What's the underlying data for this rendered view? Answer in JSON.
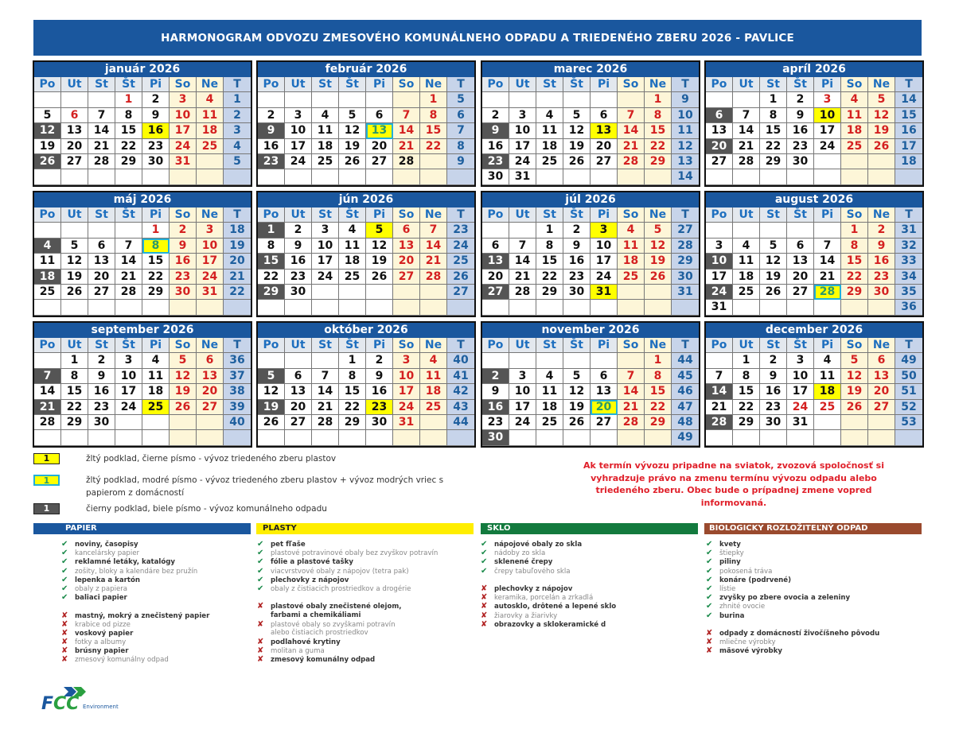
{
  "title": "HARMONOGRAM ODVOZU ZMESOVÉHO KOMUNÁLNEHO ODPADU A TRIEDENÉHO ZBERU  2026 - PAVLICE",
  "weekday_headers": [
    "Po",
    "Ut",
    "St",
    "Št",
    "Pi",
    "So",
    "Ne",
    "T"
  ],
  "colors": {
    "header_blue": "#1a579e",
    "holiday_red": "#d42020",
    "komunal_dark": "#555555",
    "plastic_yellow": "#ffff00",
    "paper_cyan": "#22b0d8",
    "weekend_cream": "#fdf6d8",
    "week_col": "#c7d4ea"
  },
  "months": [
    {
      "name": "január 2026",
      "starts_on": "Št",
      "days": 31,
      "weeks": [
        "1",
        "2",
        "3",
        "4",
        "5",
        ""
      ],
      "red": [
        1,
        3,
        4,
        6,
        10,
        11,
        17,
        18,
        24,
        25,
        31
      ],
      "komunal": [
        12,
        26
      ],
      "plasty": [
        16
      ],
      "plasty_papier": []
    },
    {
      "name": "február 2026",
      "starts_on": "Ne",
      "days": 28,
      "weeks": [
        "5",
        "6",
        "7",
        "8",
        "9",
        ""
      ],
      "red": [
        1,
        7,
        8,
        14,
        15,
        21,
        22
      ],
      "komunal": [
        9,
        23
      ],
      "plasty": [],
      "plasty_papier": [
        13
      ]
    },
    {
      "name": "marec 2026",
      "starts_on": "Ne",
      "days": 31,
      "weeks": [
        "9",
        "10",
        "11",
        "12",
        "13",
        "14"
      ],
      "red": [
        1,
        7,
        8,
        14,
        15,
        21,
        22,
        28,
        29
      ],
      "komunal": [
        9,
        23
      ],
      "plasty": [
        13
      ],
      "plasty_papier": []
    },
    {
      "name": "apríl 2026",
      "starts_on": "St",
      "days": 30,
      "weeks": [
        "14",
        "15",
        "16",
        "17",
        "18",
        ""
      ],
      "red": [
        3,
        4,
        5,
        11,
        12,
        18,
        19,
        25,
        26
      ],
      "komunal": [
        6,
        20
      ],
      "plasty": [
        10
      ],
      "plasty_papier": []
    },
    {
      "name": "máj 2026",
      "starts_on": "Pi",
      "days": 31,
      "weeks": [
        "18",
        "19",
        "20",
        "21",
        "22",
        ""
      ],
      "red": [
        1,
        2,
        3,
        9,
        10,
        16,
        17,
        23,
        24,
        30,
        31
      ],
      "komunal": [
        4,
        18
      ],
      "plasty": [],
      "plasty_papier": [
        8
      ]
    },
    {
      "name": "jún 2026",
      "starts_on": "Po",
      "days": 30,
      "weeks": [
        "23",
        "24",
        "25",
        "26",
        "27",
        ""
      ],
      "red": [
        6,
        7,
        13,
        14,
        20,
        21,
        27,
        28
      ],
      "komunal": [
        1,
        15,
        29
      ],
      "plasty": [
        5
      ],
      "plasty_papier": []
    },
    {
      "name": "júl 2026",
      "starts_on": "St",
      "days": 31,
      "weeks": [
        "27",
        "28",
        "29",
        "30",
        "31",
        ""
      ],
      "red": [
        4,
        5,
        11,
        12,
        18,
        19,
        25,
        26
      ],
      "komunal": [
        13,
        27
      ],
      "plasty": [
        3,
        31
      ],
      "plasty_papier": []
    },
    {
      "name": "august 2026",
      "starts_on": "So",
      "days": 31,
      "weeks": [
        "31",
        "32",
        "33",
        "34",
        "35",
        "36"
      ],
      "red": [
        1,
        2,
        8,
        9,
        15,
        16,
        22,
        23,
        29,
        30
      ],
      "komunal": [
        10,
        24
      ],
      "plasty": [],
      "plasty_papier": [
        28
      ]
    },
    {
      "name": "september 2026",
      "starts_on": "Ut",
      "days": 30,
      "weeks": [
        "36",
        "37",
        "38",
        "39",
        "40",
        ""
      ],
      "red": [
        5,
        6,
        12,
        13,
        19,
        20,
        26,
        27
      ],
      "komunal": [
        7,
        21
      ],
      "plasty": [
        25
      ],
      "plasty_papier": []
    },
    {
      "name": "október 2026",
      "starts_on": "Št",
      "days": 31,
      "weeks": [
        "40",
        "41",
        "42",
        "43",
        "44",
        ""
      ],
      "red": [
        3,
        4,
        10,
        11,
        17,
        18,
        24,
        25,
        31
      ],
      "komunal": [
        5,
        19
      ],
      "plasty": [
        23
      ],
      "plasty_papier": []
    },
    {
      "name": "november 2026",
      "starts_on": "Ne",
      "days": 30,
      "weeks": [
        "44",
        "45",
        "46",
        "47",
        "48",
        "49"
      ],
      "red": [
        1,
        7,
        8,
        14,
        15,
        21,
        22,
        28,
        29
      ],
      "komunal": [
        2,
        16,
        30
      ],
      "plasty": [],
      "plasty_papier": [
        20
      ]
    },
    {
      "name": "december 2026",
      "starts_on": "Ut",
      "days": 31,
      "weeks": [
        "49",
        "50",
        "51",
        "52",
        "53",
        ""
      ],
      "red": [
        5,
        6,
        12,
        13,
        19,
        20,
        24,
        25,
        26,
        27
      ],
      "komunal": [
        14,
        28
      ],
      "plasty": [
        18
      ],
      "plasty_papier": []
    }
  ],
  "legend": [
    {
      "sample": "1",
      "style": "plasty",
      "text": "žltý podklad, čierne písmo - vývoz triedeného zberu plastov"
    },
    {
      "sample": "1",
      "style": "plasty_papier",
      "text": "žltý podklad, modré písmo - vývoz triedeného zberu plastov + vývoz modrých vriec s papierom z domácností"
    },
    {
      "sample": "1",
      "style": "komunal",
      "text": "čierny podklad, biele písmo - vývoz komunálneho odpadu"
    }
  ],
  "note": "Ak termín vývozu pripadne na sviatok, zvozová spoločnosť si vyhradzuje právo na zmenu termínu vývozu odpadu alebo triedeného zberu.  Obec bude o prípadnej zmene vopred informovaná.",
  "categories": [
    {
      "title": "PAPIER",
      "color": "#1a579e",
      "text_color": "#ffffff",
      "ok": [
        {
          "t": "noviny, časopisy",
          "b": true
        },
        {
          "t": "kancelársky papier",
          "b": false
        },
        {
          "t": "reklamné letáky, katalógy",
          "b": true
        },
        {
          "t": "zošity, bloky a kalendáre bez pružín",
          "b": false
        },
        {
          "t": "lepenka a kartón",
          "b": true
        },
        {
          "t": "obaly z papiera",
          "b": false
        },
        {
          "t": "baliaci papier",
          "b": true
        }
      ],
      "no": [
        {
          "t": "mastný, mokrý  a znečistený papier",
          "b": true
        },
        {
          "t": "krabice od pizze",
          "b": false
        },
        {
          "t": "voskový papier",
          "b": true
        },
        {
          "t": "fotky a albumy",
          "b": false
        },
        {
          "t": "brúsny papier",
          "b": true
        },
        {
          "t": "zmesový komunálny odpad",
          "b": false
        }
      ]
    },
    {
      "title": "PLASTY",
      "color": "#ffee00",
      "text_color": "#222222",
      "ok": [
        {
          "t": "pet fľaše",
          "b": true
        },
        {
          "t": "plastové potravinové obaly bez zvyškov potravín",
          "b": false
        },
        {
          "t": "fólie a plastové tašky",
          "b": true
        },
        {
          "t": "viacvrstvové obaly z nápojov (tetra pak)",
          "b": false
        },
        {
          "t": "plechovky z nápojov",
          "b": true
        },
        {
          "t": "obaly z čistiacich prostriedkov a drogérie",
          "b": false
        }
      ],
      "no": [
        {
          "t": "plastové obaly znečistené olejom,",
          "b": true
        },
        {
          "t": "farbami a chemikáliami",
          "b": true,
          "cont": true
        },
        {
          "t": "plastové obaly so zvyškami potravín",
          "b": false
        },
        {
          "t": "alebo čistiacich prostriedkov",
          "b": false,
          "cont": true
        },
        {
          "t": "podlahové krytiny",
          "b": true
        },
        {
          "t": "molitan a guma",
          "b": false
        },
        {
          "t": "zmesový komunálny odpad",
          "b": true
        }
      ]
    },
    {
      "title": "SKLO",
      "color": "#137a3e",
      "text_color": "#ffffff",
      "ok": [
        {
          "t": "nápojové obaly zo skla",
          "b": true
        },
        {
          "t": "nádoby zo skla",
          "b": false
        },
        {
          "t": "sklenené črepy",
          "b": true
        },
        {
          "t": "črepy tabuľového skla",
          "b": false
        }
      ],
      "no": [
        {
          "t": "plechovky z nápojov",
          "b": true
        },
        {
          "t": "keramika, porcelán a zrkadlá",
          "b": false
        },
        {
          "t": "autosklo, drôtené a lepené sklo",
          "b": true
        },
        {
          "t": "žiarovky a žiarivky",
          "b": false
        },
        {
          "t": "obrazovky a sklokeramické d",
          "b": true
        }
      ]
    },
    {
      "title": "BIOLOGICKY ROZLOŽITEĽNÝ ODPAD",
      "color": "#9a4a2e",
      "text_color": "#ffffff",
      "ok": [
        {
          "t": "kvety",
          "b": true
        },
        {
          "t": "štiepky",
          "b": false
        },
        {
          "t": "piliny",
          "b": true
        },
        {
          "t": "pokosená tráva",
          "b": false
        },
        {
          "t": "konáre (podrvené)",
          "b": true
        },
        {
          "t": "lístie",
          "b": false
        },
        {
          "t": "zvyšky po zbere ovocia a zeleniny",
          "b": true
        },
        {
          "t": "zhnité ovocie",
          "b": false
        },
        {
          "t": "burina",
          "b": true
        }
      ],
      "no": [
        {
          "t": "odpady z domácností živočíšneho pôvodu",
          "b": true
        },
        {
          "t": "mliečne výrobky",
          "b": false
        },
        {
          "t": "mäsové výrobky",
          "b": true
        }
      ]
    }
  ],
  "logo": {
    "brand": "FCC",
    "sub": "Environment"
  }
}
